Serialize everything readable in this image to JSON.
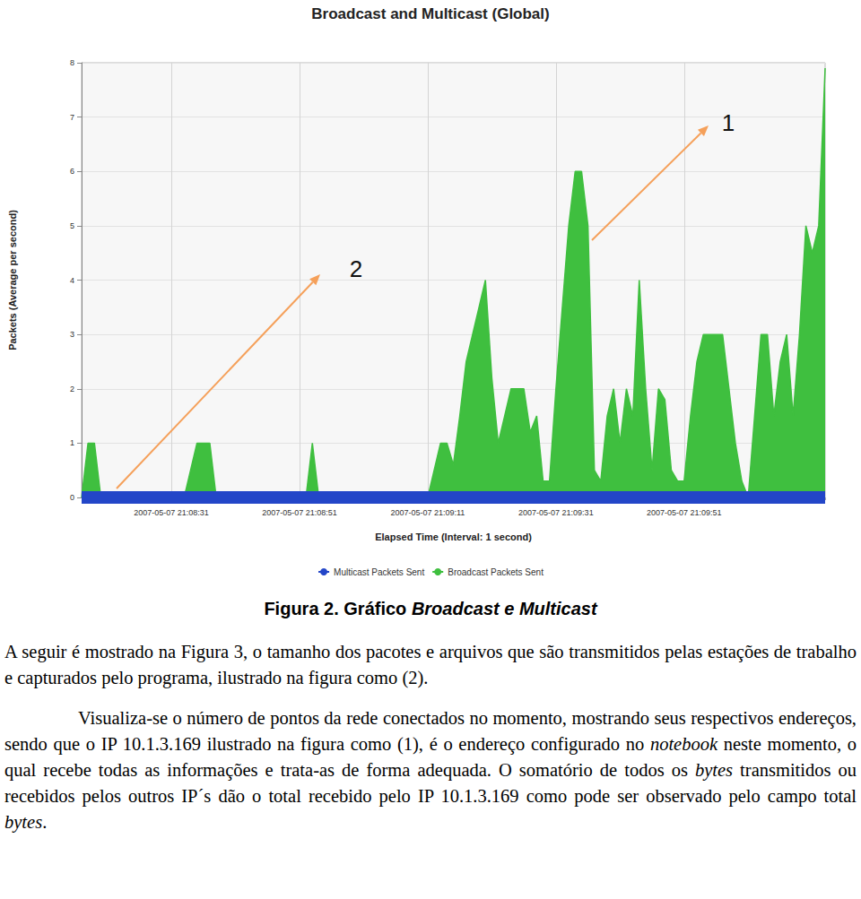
{
  "chart_data": {
    "type": "area",
    "title": "Broadcast and Multicast (Global)",
    "x_label": "Elapsed Time (Interval: 1 second)",
    "y_label": "Packets (Average per second)",
    "categories": [
      null,
      null,
      null,
      null,
      null,
      null,
      null,
      null,
      null,
      null,
      null,
      null,
      null,
      null,
      "2007-05-07 21:08:31",
      null,
      null,
      null,
      null,
      null,
      null,
      null,
      null,
      null,
      null,
      null,
      null,
      null,
      null,
      null,
      null,
      null,
      null,
      null,
      "2007-05-07 21:08:51",
      null,
      null,
      null,
      null,
      null,
      null,
      null,
      null,
      null,
      null,
      null,
      null,
      null,
      null,
      null,
      null,
      null,
      null,
      null,
      "2007-05-07 21:09:11",
      null,
      null,
      null,
      null,
      null,
      null,
      null,
      null,
      null,
      null,
      null,
      null,
      null,
      null,
      null,
      null,
      null,
      null,
      null,
      "2007-05-07 21:09:31",
      null,
      null,
      null,
      null,
      null,
      null,
      null,
      null,
      null,
      null,
      null,
      null,
      null,
      null,
      null,
      null,
      null,
      null,
      null,
      "2007-05-07 21:09:51",
      null,
      null,
      null,
      null,
      null,
      null,
      null,
      null,
      null,
      null,
      null,
      null,
      null,
      null,
      null,
      null,
      null,
      null,
      null,
      null,
      null,
      null
    ],
    "series": [
      {
        "name": "Multicast Packets Sent",
        "color": "#2346c8",
        "values": [
          0,
          0,
          0,
          0,
          0,
          0,
          0,
          0,
          0,
          0,
          0,
          0,
          0,
          0,
          0,
          0,
          0,
          0,
          0,
          0,
          0,
          0,
          0,
          0,
          0,
          0,
          0,
          0,
          0,
          0,
          0,
          0,
          0,
          0,
          0,
          0,
          0,
          0,
          0,
          0,
          0,
          0,
          0,
          0,
          0,
          0,
          0,
          0,
          0,
          0,
          0,
          0,
          0,
          0,
          0,
          0,
          0,
          0,
          0,
          0,
          0,
          0,
          0,
          0,
          0,
          0,
          0,
          0,
          0,
          0,
          0,
          0,
          0,
          0,
          0,
          0,
          0,
          0,
          0,
          0,
          0,
          0,
          0,
          0,
          0,
          0,
          0,
          0,
          0,
          0,
          0,
          0,
          0,
          0,
          0,
          0,
          0,
          0,
          0,
          0,
          0,
          0,
          0,
          0,
          0,
          0,
          0,
          0,
          0,
          0,
          0,
          0,
          0,
          0,
          0,
          0,
          0
        ]
      },
      {
        "name": "Broadcast Packets Sent",
        "color": "#3fbf3f",
        "values": [
          0,
          1,
          1,
          0,
          0,
          0,
          0,
          0,
          0,
          0,
          0,
          0,
          0,
          0,
          0,
          0,
          0,
          0.5,
          1,
          1,
          1,
          0,
          0,
          0,
          0,
          0,
          0,
          0,
          0,
          0,
          0,
          0,
          0,
          0,
          0,
          0,
          1,
          0,
          0,
          0,
          0,
          0,
          0,
          0,
          0,
          0,
          0,
          0,
          0,
          0,
          0,
          0,
          0,
          0,
          0,
          0.5,
          1,
          1,
          0.6,
          1.5,
          2.5,
          3,
          3.5,
          4,
          2.2,
          1,
          1.5,
          2,
          2,
          2,
          1.2,
          1.5,
          0.3,
          0.3,
          2,
          3.5,
          5,
          6,
          6,
          5,
          0.5,
          0.3,
          1.5,
          2,
          1,
          2,
          1.5,
          4,
          2,
          0.5,
          2,
          1.8,
          0.5,
          0.3,
          0.3,
          1.5,
          2.5,
          3,
          3,
          3,
          3,
          2,
          1,
          0.3,
          0,
          1.5,
          3,
          3,
          1.5,
          2.5,
          3,
          1.5,
          3,
          5,
          4.5,
          5,
          7.9
        ]
      }
    ],
    "ylim": [
      0,
      8
    ],
    "yticks": [
      0,
      1,
      2,
      3,
      4,
      5,
      6,
      7,
      8
    ],
    "grid": true,
    "legend": "bottom",
    "annotations": [
      {
        "text": "1"
      },
      {
        "text": "2"
      }
    ]
  },
  "caption": [
    {
      "text": "Figura 2. Gráfico "
    },
    {
      "text": "Broadcast e Multicast",
      "style": "italic"
    }
  ],
  "paragraphs": [
    [
      {
        "text": "A seguir é mostrado na Figura 3, o tamanho dos pacotes e arquivos que são transmitidos pelas estações de trabalho e capturados pelo programa, ilustrado na figura como (2)."
      }
    ],
    [
      {
        "text": "Visualiza-se o número de pontos da rede conectados no momento, mostrando seus respectivos endereços, sendo que o IP 10.1.3.169 ilustrado na figura como (1), é o endereço configurado no "
      },
      {
        "text": "notebook",
        "style": "italic"
      },
      {
        "text": "  neste momento, o qual recebe todas as informações e trata-as de forma adequada. O somatório de todos os "
      },
      {
        "text": "bytes",
        "style": "italic"
      },
      {
        "text": " transmitidos ou recebidos pelos outros IP´s dão o total recebido pelo IP 10.1.3.169  como pode ser observado pelo campo total "
      },
      {
        "text": "bytes",
        "style": "italic"
      },
      {
        "text": "."
      }
    ]
  ]
}
